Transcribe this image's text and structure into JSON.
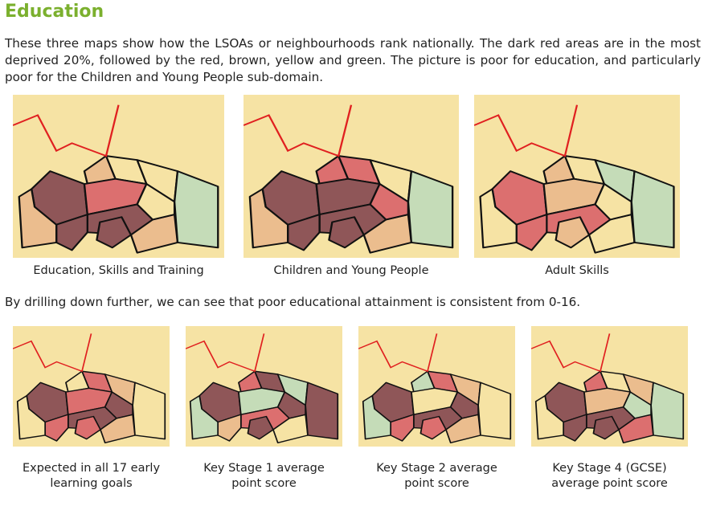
{
  "heading": "Education",
  "intro_text": "These three maps show how the LSOAs or neighbourhoods rank nationally. The dark red areas are in the most deprived 20%, followed by the red, brown, yellow and green. The picture is poor for education, and particularly poor for the Children and Young People sub-domain.",
  "drill_text": "By drilling down further, we can see that poor educational attainment is consistent from 0-16.",
  "colors": {
    "heading": "#7bb02e",
    "dark_red": "#8f5658",
    "red": "#dc6f6f",
    "brown": "#ebbd8e",
    "yellow": "#f6e3a4",
    "green": "#c5dcb8",
    "boundary": "#111111",
    "district_edge": "#e02020"
  },
  "top_maps": [
    {
      "caption": "Education, Skills and Training",
      "shades": [
        "dark_red",
        "brown",
        "yellow",
        "yellow",
        "red",
        "dark_red",
        "dark_red",
        "brown",
        "yellow",
        "brown",
        "dark_red",
        "green"
      ]
    },
    {
      "caption": "Children and Young People",
      "shades": [
        "dark_red",
        "red",
        "red",
        "yellow",
        "dark_red",
        "dark_red",
        "dark_red",
        "brown",
        "red",
        "brown",
        "dark_red",
        "green"
      ]
    },
    {
      "caption": "Adult Skills",
      "shades": [
        "red",
        "brown",
        "yellow",
        "green",
        "brown",
        "red",
        "red",
        "yellow",
        "yellow",
        "yellow",
        "brown",
        "green"
      ]
    }
  ],
  "bottom_maps": [
    {
      "caption_line1": "Expected in all 17 early",
      "caption_line2": "learning goals",
      "shades": [
        "dark_red",
        "yellow",
        "red",
        "brown",
        "red",
        "dark_red",
        "red",
        "brown",
        "dark_red",
        "yellow",
        "red",
        "yellow"
      ]
    },
    {
      "caption_line1": "Key Stage 1 average",
      "caption_line2": "point score",
      "shades": [
        "dark_red",
        "red",
        "dark_red",
        "green",
        "green",
        "red",
        "brown",
        "yellow",
        "dark_red",
        "green",
        "dark_red",
        "dark_red"
      ]
    },
    {
      "caption_line1": "Key Stage 2 average",
      "caption_line2": "point score",
      "shades": [
        "dark_red",
        "green",
        "red",
        "brown",
        "yellow",
        "dark_red",
        "red",
        "brown",
        "dark_red",
        "green",
        "red",
        "yellow"
      ]
    },
    {
      "caption_line1": "Key Stage 4 (GCSE)",
      "caption_line2": "average point score",
      "shades": [
        "dark_red",
        "red",
        "yellow",
        "brown",
        "brown",
        "dark_red",
        "dark_red",
        "red",
        "green",
        "yellow",
        "dark_red",
        "green"
      ]
    }
  ]
}
